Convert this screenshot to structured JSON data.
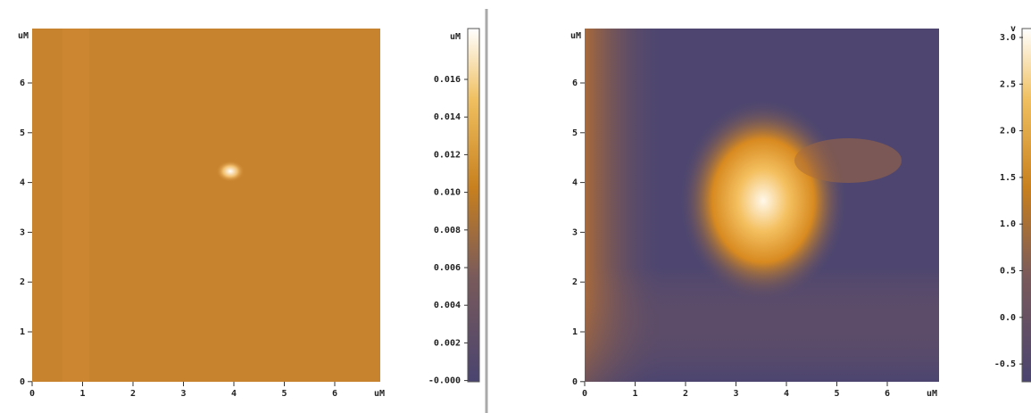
{
  "panels": [
    {
      "y_unit": "uM",
      "x_unit": "uM",
      "y_ticks": [
        "6",
        "5",
        "4",
        "3",
        "2",
        "1",
        "0"
      ],
      "x_ticks": [
        "0",
        "1",
        "2",
        "3",
        "4",
        "5",
        "6"
      ],
      "colorbar": {
        "unit": "uM",
        "ticks": [
          "0.016",
          "0.014",
          "0.012",
          "0.010",
          "0.008",
          "0.006",
          "0.004",
          "0.002",
          "-0.000"
        ]
      }
    },
    {
      "y_unit": "uM",
      "x_unit": "uM",
      "y_ticks": [
        "6",
        "5",
        "4",
        "3",
        "2",
        "1",
        "0"
      ],
      "x_ticks": [
        "0",
        "1",
        "2",
        "3",
        "4",
        "5",
        "6"
      ],
      "colorbar": {
        "unit": "v",
        "ticks": [
          "3.0",
          "2.5",
          "2.0",
          "1.5",
          "1.0",
          "0.5",
          "0.0",
          "-0.5"
        ]
      }
    }
  ]
}
